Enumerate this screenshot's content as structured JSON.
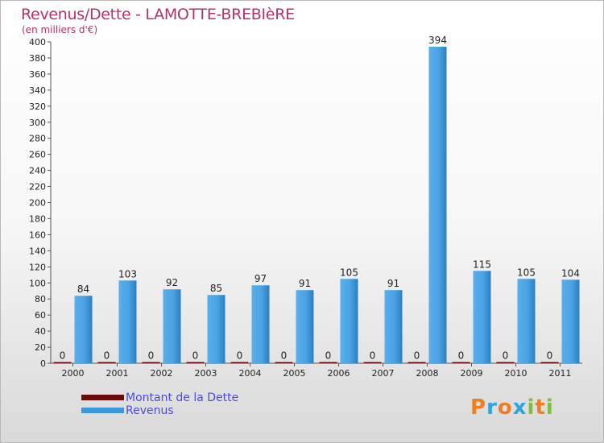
{
  "title": "Revenus/Dette - LAMOTTE-BREBIèRE",
  "subtitle": "(en milliers d'€)",
  "logo": {
    "letters": [
      "P",
      "r",
      "o",
      "x",
      "i",
      "t",
      "i"
    ],
    "colors": [
      "#f07e20",
      "#2aa6dd",
      "#f07e20",
      "#2aa6dd",
      "#7fbf3f",
      "#f07e20",
      "#7fbf3f"
    ]
  },
  "legend": [
    {
      "label": "Montant de la Dette",
      "color": "#6b0a0a"
    },
    {
      "label": "Revenus",
      "color": "#3d97d8"
    }
  ],
  "chart_data": {
    "type": "bar",
    "title": "Revenus/Dette - LAMOTTE-BREBIèRE",
    "ylabel": "(en milliers d'€)",
    "categories": [
      "2000",
      "2001",
      "2002",
      "2003",
      "2004",
      "2005",
      "2006",
      "2007",
      "2008",
      "2009",
      "2010",
      "2011"
    ],
    "series": [
      {
        "name": "Montant de la Dette",
        "color": "#6b0a0a",
        "values": [
          0,
          0,
          0,
          0,
          0,
          0,
          0,
          0,
          0,
          0,
          0,
          0
        ]
      },
      {
        "name": "Revenus",
        "color": "#3d97d8",
        "values": [
          84,
          103,
          92,
          85,
          97,
          91,
          105,
          91,
          394,
          115,
          105,
          104
        ]
      }
    ],
    "ylim": [
      0,
      400
    ],
    "yticks": [
      0,
      20,
      40,
      60,
      80,
      100,
      120,
      140,
      160,
      180,
      200,
      220,
      240,
      260,
      280,
      300,
      320,
      340,
      360,
      380,
      400
    ],
    "grid": false,
    "legend_position": "bottom-left"
  }
}
